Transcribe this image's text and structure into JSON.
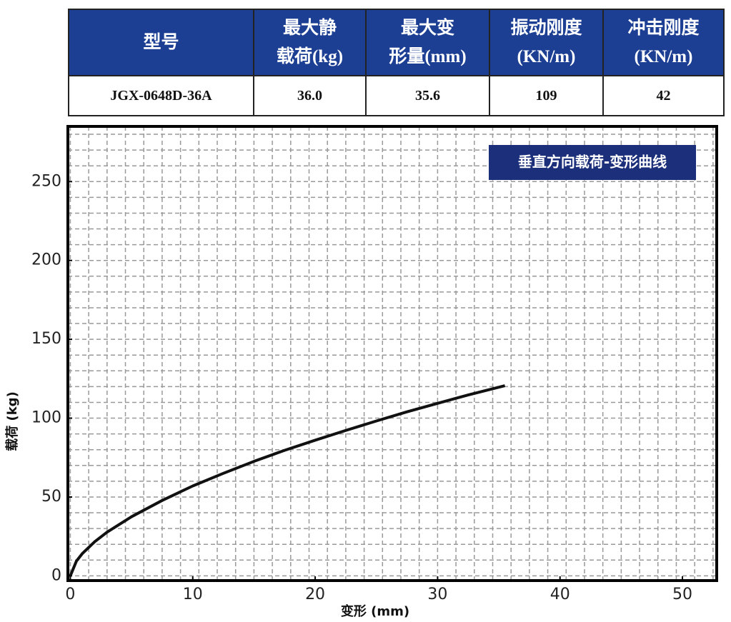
{
  "table": {
    "header": [
      [
        "型号"
      ],
      [
        "最大静",
        "载荷(kg)"
      ],
      [
        "最大变",
        "形量(mm)"
      ],
      [
        "振动刚度",
        "(KN/m)"
      ],
      [
        "冲击刚度",
        "(KN/m)"
      ]
    ],
    "rows": [
      [
        "JGX-0648D-36A",
        "36.0",
        "35.6",
        "109",
        "42"
      ]
    ]
  },
  "chart_data": {
    "type": "line",
    "annotation": "垂直方向载荷-变形曲线",
    "x_label": "变形 (mm)",
    "y_label": "载荷 (kg)",
    "x": [
      0,
      0.5,
      1,
      2,
      3,
      5,
      7.5,
      10,
      12.5,
      15,
      17.5,
      20,
      22.5,
      25,
      27.5,
      30,
      32.5,
      35.5
    ],
    "series": [
      {
        "color": "#111111",
        "values": [
          0,
          9.4,
          14.3,
          21.7,
          27.7,
          37.5,
          47.8,
          57,
          65,
          72.6,
          79.6,
          86,
          92.2,
          98.2,
          104,
          109.4,
          114.7,
          120.6
        ]
      }
    ],
    "xlim": [
      -0.2,
      52.8
    ],
    "ylim": [
      -3,
      285
    ],
    "xticks": [
      0,
      10,
      20,
      30,
      40,
      50
    ],
    "yticks": [
      0,
      50,
      100,
      150,
      200,
      250
    ],
    "grid": {
      "x_step": 1.5,
      "y_step": 10
    }
  }
}
